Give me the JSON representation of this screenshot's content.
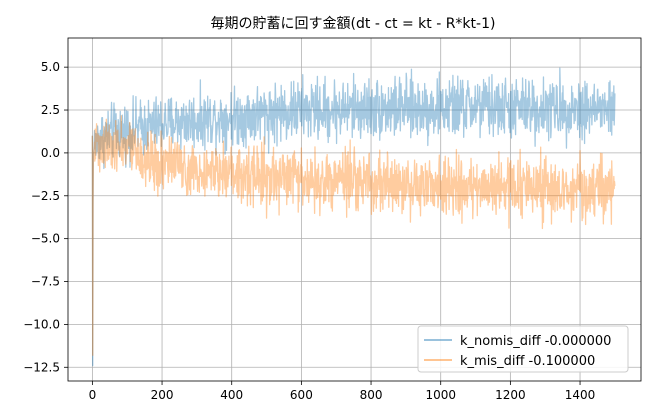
{
  "chart_data": {
    "type": "line",
    "title": "毎期の貯蓄に回す金額(dt - ct = kt - R*kt-1)",
    "xlabel": "",
    "ylabel": "",
    "xlim": [
      -70,
      1575
    ],
    "ylim": [
      -13.3,
      6.7
    ],
    "xticks": [
      0,
      200,
      400,
      600,
      800,
      1000,
      1200,
      1400
    ],
    "xtick_labels": [
      "0",
      "200",
      "400",
      "600",
      "800",
      "1000",
      "1200",
      "1400"
    ],
    "yticks": [
      5.0,
      2.5,
      0.0,
      -2.5,
      -5.0,
      -7.5,
      -10.0,
      -12.5
    ],
    "ytick_labels": [
      "5.0",
      "2.5",
      "0.0",
      "−2.5",
      "−5.0",
      "−7.5",
      "−10.0",
      "−12.5"
    ],
    "grid": true,
    "legend_position": "lower-right",
    "series": [
      {
        "name": "k_nomis_diff -0.000000",
        "color": "#1f77b4",
        "alpha": 0.4,
        "x": [
          0,
          1,
          2,
          3,
          5,
          10,
          20,
          40,
          60,
          100,
          150,
          200,
          300,
          400,
          500,
          600,
          700,
          800,
          900,
          1000,
          1100,
          1200,
          1300,
          1400,
          1500
        ],
        "y": [
          1.0,
          -12.4,
          -3.0,
          0.0,
          0.5,
          0.6,
          0.9,
          1.0,
          1.2,
          1.3,
          1.5,
          1.7,
          1.9,
          2.1,
          2.3,
          2.5,
          2.5,
          2.6,
          2.6,
          2.6,
          2.7,
          2.6,
          2.6,
          2.6,
          2.5
        ],
        "noise": [
          0.5,
          0.0,
          0.5,
          0.5,
          0.8,
          0.9,
          1.0,
          1.0,
          1.0,
          1.0,
          1.0,
          1.0,
          1.0,
          1.0,
          1.1,
          1.1,
          1.1,
          1.1,
          1.1,
          1.1,
          1.1,
          1.1,
          1.1,
          1.1,
          1.1
        ]
      },
      {
        "name": "k_mis_diff -0.100000",
        "color": "#ff7f0e",
        "alpha": 0.4,
        "x": [
          0,
          1,
          2,
          3,
          5,
          10,
          20,
          40,
          60,
          100,
          150,
          200,
          300,
          400,
          500,
          600,
          700,
          800,
          900,
          1000,
          1100,
          1200,
          1300,
          1400,
          1500
        ],
        "y": [
          1.0,
          -11.8,
          -3.0,
          0.0,
          0.5,
          0.6,
          0.7,
          0.6,
          0.5,
          0.2,
          -0.3,
          -0.6,
          -0.9,
          -1.1,
          -1.3,
          -1.5,
          -1.6,
          -1.8,
          -1.9,
          -2.0,
          -2.0,
          -2.0,
          -2.1,
          -2.1,
          -2.1
        ],
        "noise": [
          0.5,
          0.0,
          0.5,
          0.5,
          0.8,
          0.9,
          1.0,
          1.0,
          1.0,
          1.0,
          1.0,
          1.0,
          1.0,
          1.0,
          1.1,
          1.1,
          1.1,
          1.1,
          1.1,
          1.1,
          1.1,
          1.1,
          1.1,
          1.1,
          1.1
        ]
      }
    ]
  }
}
